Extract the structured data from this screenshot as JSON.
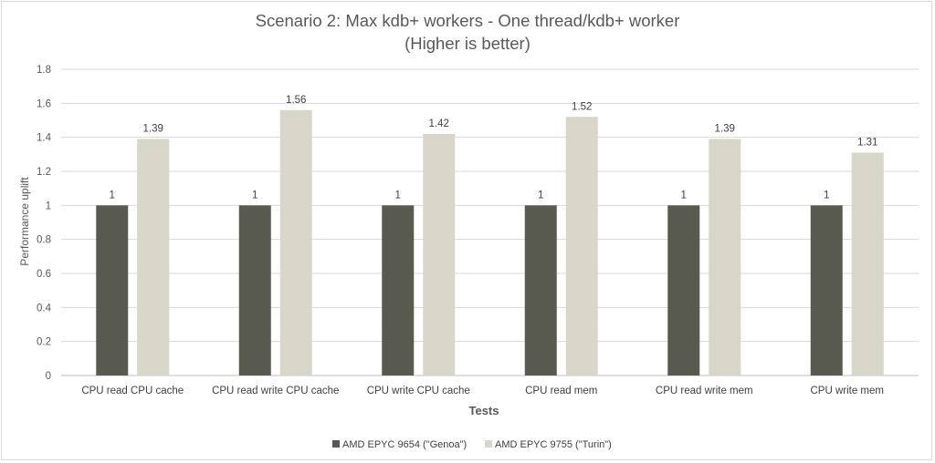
{
  "chart_data": {
    "type": "bar",
    "title": "Scenario 2: Max kdb+ workers - One thread/kdb+ worker",
    "subtitle": "(Higher is better)",
    "xlabel": "Tests",
    "ylabel": "Performance uplift",
    "ylim": [
      0,
      1.8
    ],
    "yticks": [
      "0",
      "0.2",
      "0.4",
      "0.6",
      "0.8",
      "1",
      "1.2",
      "1.4",
      "1.6",
      "1.8"
    ],
    "categories": [
      "CPU read CPU cache",
      "CPU read write CPU cache",
      "CPU write CPU cache",
      "CPU read mem",
      "CPU read write mem",
      "CPU write mem"
    ],
    "series": [
      {
        "name": "AMD EPYC 9654 (\"Genoa\")",
        "color": "#595a4f",
        "values": [
          1,
          1,
          1,
          1,
          1,
          1
        ],
        "labels": [
          "1",
          "1",
          "1",
          "1",
          "1",
          "1"
        ]
      },
      {
        "name": "AMD EPYC 9755 (\"Turin\")",
        "color": "#d7d6c8",
        "values": [
          1.39,
          1.56,
          1.42,
          1.52,
          1.39,
          1.31
        ],
        "labels": [
          "1.39",
          "1.56",
          "1.42",
          "1.52",
          "1.39",
          "1.31"
        ]
      }
    ],
    "grid": true,
    "legend_position": "bottom"
  }
}
